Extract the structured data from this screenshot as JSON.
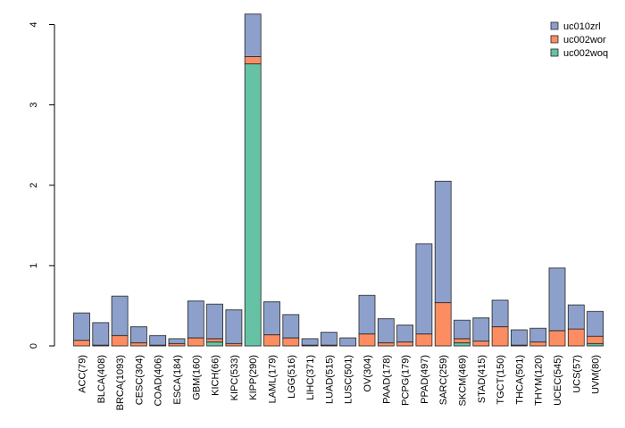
{
  "chart_data": {
    "type": "bar",
    "stacked": true,
    "title": "",
    "xlabel": "",
    "ylabel": "",
    "ylim": [
      0,
      4.2
    ],
    "yticks": [
      0,
      1,
      2,
      3,
      4
    ],
    "grid": false,
    "legend_position": "top-right",
    "categories": [
      "ACC(79)",
      "BLCA(408)",
      "BRCA(1093)",
      "CESC(304)",
      "COAD(406)",
      "ESCA(184)",
      "GBM(160)",
      "KICH(66)",
      "KIPC(533)",
      "KIPP(290)",
      "LAML(179)",
      "LGG(516)",
      "LIHC(371)",
      "LUAD(515)",
      "LUSC(501)",
      "OV(304)",
      "PAAD(178)",
      "PCPG(179)",
      "PPAD(497)",
      "SARC(259)",
      "SKCM(469)",
      "STAD(415)",
      "TGCT(150)",
      "THCA(501)",
      "THYM(120)",
      "UCEC(545)",
      "UCS(57)",
      "UVM(80)"
    ],
    "series": [
      {
        "name": "uc002woq",
        "color": "#66c2a5",
        "values": [
          0.0,
          0.0,
          0.0,
          0.0,
          0.0,
          0.0,
          0.0,
          0.05,
          0.0,
          3.51,
          0.0,
          0.0,
          0.0,
          0.0,
          0.0,
          0.0,
          0.0,
          0.0,
          0.0,
          0.0,
          0.04,
          0.0,
          0.0,
          0.0,
          0.0,
          0.0,
          0.0,
          0.03
        ]
      },
      {
        "name": "uc002wor",
        "color": "#fc8d62",
        "values": [
          0.07,
          0.01,
          0.13,
          0.04,
          0.01,
          0.03,
          0.1,
          0.04,
          0.03,
          0.09,
          0.14,
          0.1,
          0.01,
          0.01,
          0.0,
          0.15,
          0.04,
          0.05,
          0.15,
          0.54,
          0.05,
          0.06,
          0.24,
          0.01,
          0.05,
          0.19,
          0.21,
          0.09
        ]
      },
      {
        "name": "uc010zrl",
        "color": "#8da0cb",
        "values": [
          0.34,
          0.28,
          0.49,
          0.2,
          0.12,
          0.06,
          0.46,
          0.43,
          0.42,
          0.53,
          0.41,
          0.29,
          0.08,
          0.16,
          0.1,
          0.48,
          0.3,
          0.21,
          1.12,
          1.51,
          0.23,
          0.29,
          0.33,
          0.19,
          0.17,
          0.78,
          0.3,
          0.31
        ]
      }
    ],
    "legend": [
      {
        "name": "uc010zrl",
        "color": "#8da0cb"
      },
      {
        "name": "uc002wor",
        "color": "#fc8d62"
      },
      {
        "name": "uc002woq",
        "color": "#66c2a5"
      }
    ]
  }
}
